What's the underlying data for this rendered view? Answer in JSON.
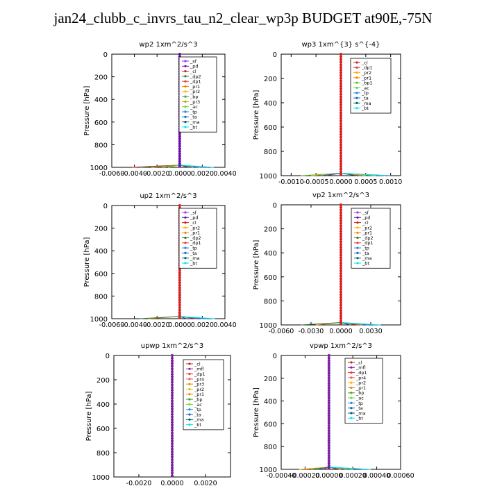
{
  "page": {
    "title": "jan24_clubb_c_invrs_tau_n2_clear_wp3p  BUDGET at90E,-75N"
  },
  "colors": {
    "_sf": "#9b30ff",
    "_pd": "#6a0dad",
    "_cl": "#d62020",
    "_mfl": "#7b1fa2",
    "_dp1": "#e53935",
    "_dp2": "#2e7d32",
    "_pr1": "#ff7f00",
    "_pr2": "#ffb300",
    "_pr3": "#c8a000",
    "_pr4": "#ff5252",
    "_bp1": "#6abf2e",
    "_bp": "#3aa63a",
    "_ac": "#66dd33",
    "_tp": "#1e88e5",
    "_ta": "#1565c0",
    "_ma": "#006064",
    "_bt": "#00e5ff",
    "_ke": "#7cb342"
  },
  "chart_data": [
    {
      "type": "line",
      "title": "wp2   1xm^2/s^3",
      "ylabel": "Pressure [hPa]",
      "ylim": [
        1000,
        0
      ],
      "xlim": [
        -0.006,
        0.004
      ],
      "xticks": [
        -0.006,
        -0.004,
        -0.002,
        0.0,
        0.002,
        0.004
      ],
      "xticklabels": [
        "-0.0060",
        "-0.0040",
        "-0.0020",
        "0.0000",
        "0.0020",
        "0.0040"
      ],
      "yticks": [
        0,
        200,
        400,
        600,
        800,
        1000
      ],
      "dominant": "_pd",
      "series": [
        {
          "name": "_sf",
          "values": [
            0.0,
            -2e-05
          ]
        },
        {
          "name": "_pd",
          "values": [
            0.0,
            0.0
          ]
        },
        {
          "name": "_cl",
          "values": [
            0.0,
            -0.0042
          ]
        },
        {
          "name": "_dp2",
          "values": [
            0.0,
            -0.0035
          ]
        },
        {
          "name": "_dp1",
          "values": [
            0.0,
            0.0022
          ]
        },
        {
          "name": "_pr1",
          "values": [
            0.0,
            -0.0025
          ]
        },
        {
          "name": "_pr2",
          "values": [
            0.0,
            0.0018
          ]
        },
        {
          "name": "_bp",
          "values": [
            0.0,
            -0.0015
          ]
        },
        {
          "name": "_pr3",
          "values": [
            0.0,
            0.0012
          ]
        },
        {
          "name": "_ac",
          "values": [
            0.0,
            -0.001
          ]
        },
        {
          "name": "_tp",
          "values": [
            0.0,
            0.002
          ]
        },
        {
          "name": "_ta",
          "values": [
            0.0,
            0.0025
          ]
        },
        {
          "name": "_ma",
          "values": [
            0.0,
            0.0008
          ]
        },
        {
          "name": "_bt",
          "values": [
            0.0,
            0.003
          ]
        }
      ]
    },
    {
      "type": "line",
      "title": "wp3   1xm^{3} s^{-4}",
      "ylabel": "Pressure [hPa]",
      "ylim": [
        1000,
        0
      ],
      "xlim": [
        -0.0012,
        0.0012
      ],
      "xticks": [
        -0.001,
        -0.0005,
        0.0,
        0.0005,
        0.001
      ],
      "xticklabels": [
        "-0.0010",
        "-0.0005",
        "0.0000",
        "0.0005",
        "0.0010"
      ],
      "yticks": [
        0,
        200,
        400,
        600,
        800,
        1000
      ],
      "dominant": "_cl",
      "series": [
        {
          "name": "_cl",
          "values": [
            0.0,
            -0.0003
          ]
        },
        {
          "name": "_dp1",
          "values": [
            0.0,
            0.0004
          ]
        },
        {
          "name": "_pr2",
          "values": [
            0.0,
            -0.0006
          ]
        },
        {
          "name": "_pr1",
          "values": [
            0.0,
            0.0005
          ]
        },
        {
          "name": "_bp1",
          "values": [
            0.0,
            -0.0008
          ]
        },
        {
          "name": "_ac",
          "values": [
            0.0,
            0.0007
          ]
        },
        {
          "name": "_tp",
          "values": [
            0.0,
            0.001
          ]
        },
        {
          "name": "_ta",
          "values": [
            0.0,
            -0.0004
          ]
        },
        {
          "name": "_ma",
          "values": [
            0.0,
            0.0003
          ]
        },
        {
          "name": "_bt",
          "values": [
            0.0,
            0.0009
          ]
        }
      ]
    },
    {
      "type": "line",
      "title": "up2   1xm^2/s^3",
      "ylabel": "Pressure [hPa]",
      "ylim": [
        1000,
        0
      ],
      "xlim": [
        -0.006,
        0.004
      ],
      "xticks": [
        -0.006,
        -0.004,
        -0.002,
        0.0,
        0.002,
        0.004
      ],
      "xticklabels": [
        "-0.0060",
        "-0.0040",
        "-0.0020",
        "0.0000",
        "0.0020",
        "0.0040"
      ],
      "yticks": [
        0,
        200,
        400,
        600,
        800,
        1000
      ],
      "dominant": "_cl",
      "series": [
        {
          "name": "_sf",
          "values": [
            0.0,
            0.0
          ]
        },
        {
          "name": "_pd",
          "values": [
            0.0,
            0.0
          ]
        },
        {
          "name": "_cl",
          "values": [
            0.0,
            0.0
          ]
        },
        {
          "name": "_pr2",
          "values": [
            0.0,
            0.0021
          ]
        },
        {
          "name": "_pr1",
          "values": [
            0.0,
            -0.0028
          ]
        },
        {
          "name": "_dp2",
          "values": [
            0.0,
            -0.0035
          ]
        },
        {
          "name": "_dp1",
          "values": [
            0.0,
            0.0015
          ]
        },
        {
          "name": "_tp",
          "values": [
            0.0,
            0.002
          ]
        },
        {
          "name": "_ta",
          "values": [
            0.0,
            0.0024
          ]
        },
        {
          "name": "_ma",
          "values": [
            0.0,
            0.0006
          ]
        },
        {
          "name": "_bt",
          "values": [
            0.0,
            0.0031
          ]
        }
      ]
    },
    {
      "type": "line",
      "title": "vp2   1xm^2/s^3",
      "ylabel": "Pressure [hPa]",
      "ylim": [
        1000,
        0
      ],
      "xlim": [
        -0.006,
        0.006
      ],
      "xticks": [
        -0.006,
        -0.003,
        0.0,
        0.003
      ],
      "xticklabels": [
        "-0.0060",
        "-0.0030",
        "0.0000",
        "0.0030"
      ],
      "yticks": [
        0,
        200,
        400,
        600,
        800,
        1000
      ],
      "dominant": "_cl",
      "series": [
        {
          "name": "_sf",
          "values": [
            0.0,
            0.0
          ]
        },
        {
          "name": "_pd",
          "values": [
            0.0,
            0.0
          ]
        },
        {
          "name": "_cl",
          "values": [
            0.0,
            0.0
          ]
        },
        {
          "name": "_pr2",
          "values": [
            0.0,
            0.0022
          ]
        },
        {
          "name": "_pr1",
          "values": [
            0.0,
            -0.0025
          ]
        },
        {
          "name": "_dp2",
          "values": [
            0.0,
            -0.004
          ]
        },
        {
          "name": "_dp1",
          "values": [
            0.0,
            0.0018
          ]
        },
        {
          "name": "_tp",
          "values": [
            0.0,
            0.0028
          ]
        },
        {
          "name": "_ta",
          "values": [
            0.0,
            0.0035
          ]
        },
        {
          "name": "_ma",
          "values": [
            0.0,
            0.0009
          ]
        },
        {
          "name": "_bt",
          "values": [
            0.0,
            0.004
          ]
        }
      ]
    },
    {
      "type": "line",
      "title": "upwp   1xm^2/s^3",
      "ylabel": "Pressure [hPa]",
      "ylim": [
        1000,
        0
      ],
      "xlim": [
        -0.0035,
        0.0035
      ],
      "xticks": [
        -0.002,
        0.0,
        0.002
      ],
      "xticklabels": [
        "-0.0020",
        "0.0000",
        "0.0020"
      ],
      "yticks": [
        0,
        200,
        400,
        600,
        800,
        1000
      ],
      "dominant": "_mfl",
      "series": [
        {
          "name": "_cl",
          "values": [
            0.0,
            0.0
          ]
        },
        {
          "name": "_mfl",
          "values": [
            0.0,
            0.0
          ]
        },
        {
          "name": "_dp1",
          "values": [
            0.0,
            0.0
          ]
        },
        {
          "name": "_pr4",
          "values": [
            0.0,
            0.0
          ]
        },
        {
          "name": "_pr3",
          "values": [
            0.0,
            0.0
          ]
        },
        {
          "name": "_pr2",
          "values": [
            0.0,
            0.0
          ]
        },
        {
          "name": "_pr1",
          "values": [
            0.0,
            0.0
          ]
        },
        {
          "name": "_bp",
          "values": [
            0.0,
            0.0
          ]
        },
        {
          "name": "_ac",
          "values": [
            0.0,
            0.0
          ]
        },
        {
          "name": "_tp",
          "values": [
            0.0,
            0.0
          ]
        },
        {
          "name": "_ta",
          "values": [
            0.0,
            0.0
          ]
        },
        {
          "name": "_ma",
          "values": [
            0.0,
            0.0
          ]
        },
        {
          "name": "_bt",
          "values": [
            0.0,
            0.0
          ]
        }
      ]
    },
    {
      "type": "line",
      "title": "vpwp   1xm^2/s^3",
      "ylabel": "Pressure [hPa]",
      "ylim": [
        1000,
        0
      ],
      "xlim": [
        -0.0004,
        0.0006
      ],
      "xticks": [
        -0.0004,
        -0.0002,
        0.0,
        0.0002,
        0.0004,
        0.0006
      ],
      "xticklabels": [
        "-0.00040",
        "-0.00020",
        "0.00000",
        "0.00020",
        "0.00040",
        "0.00060"
      ],
      "yticks": [
        0,
        200,
        400,
        600,
        800,
        1000
      ],
      "dominant": "_mfl",
      "series": [
        {
          "name": "_cl",
          "values": [
            0.0,
            -5e-05
          ]
        },
        {
          "name": "_mfl",
          "values": [
            0.0,
            0.0
          ]
        },
        {
          "name": "_dp1",
          "values": [
            0.0,
            -0.0002
          ]
        },
        {
          "name": "_pr4",
          "values": [
            0.0,
            0.00015
          ]
        },
        {
          "name": "_pr2",
          "values": [
            0.0,
            -0.00025
          ]
        },
        {
          "name": "_pr1",
          "values": [
            0.0,
            0.0001
          ]
        },
        {
          "name": "_bp",
          "values": [
            0.0,
            -0.00015
          ]
        },
        {
          "name": "_ac",
          "values": [
            0.0,
            0.0002
          ]
        },
        {
          "name": "_tp",
          "values": [
            0.0,
            0.0003
          ]
        },
        {
          "name": "_ta",
          "values": [
            0.0,
            -0.0001
          ]
        },
        {
          "name": "_ma",
          "values": [
            0.0,
            8e-05
          ]
        },
        {
          "name": "_bt",
          "values": [
            0.0,
            0.00035
          ]
        }
      ]
    }
  ]
}
